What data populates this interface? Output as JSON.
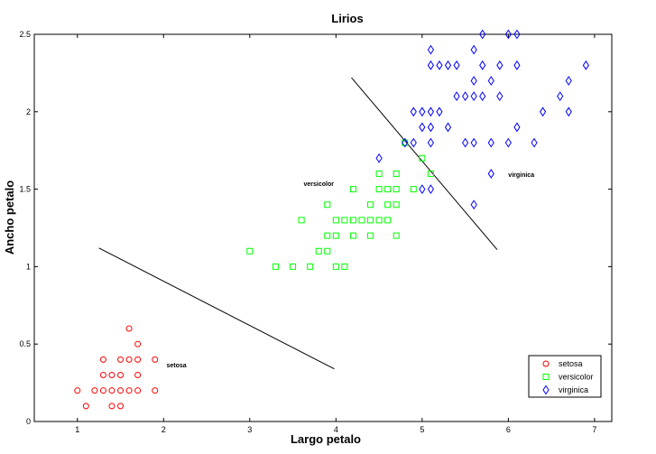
{
  "chart_data": {
    "type": "scatter",
    "title": "Lirios",
    "xlabel": "Largo petalo",
    "ylabel": "Ancho petalo",
    "xlim": [
      0.5,
      7.2
    ],
    "ylim": [
      0,
      2.5
    ],
    "x_ticks": [
      1,
      2,
      3,
      4,
      5,
      6,
      7
    ],
    "y_ticks": [
      0,
      0.5,
      1,
      1.5,
      2,
      2.5
    ],
    "y_tick_labels": [
      "0",
      "0.5",
      "1",
      "1.5",
      "2",
      "2.5"
    ],
    "grid": false,
    "legend_position": "bottom-right",
    "series": [
      {
        "name": "setosa",
        "marker": "circle",
        "color": "#ff0000",
        "points": [
          [
            1.0,
            0.2
          ],
          [
            1.1,
            0.1
          ],
          [
            1.2,
            0.2
          ],
          [
            1.3,
            0.2
          ],
          [
            1.3,
            0.3
          ],
          [
            1.3,
            0.4
          ],
          [
            1.4,
            0.1
          ],
          [
            1.4,
            0.2
          ],
          [
            1.4,
            0.3
          ],
          [
            1.5,
            0.1
          ],
          [
            1.5,
            0.2
          ],
          [
            1.5,
            0.3
          ],
          [
            1.5,
            0.4
          ],
          [
            1.6,
            0.2
          ],
          [
            1.6,
            0.4
          ],
          [
            1.6,
            0.6
          ],
          [
            1.7,
            0.2
          ],
          [
            1.7,
            0.3
          ],
          [
            1.7,
            0.4
          ],
          [
            1.7,
            0.5
          ],
          [
            1.9,
            0.2
          ],
          [
            1.9,
            0.4
          ]
        ]
      },
      {
        "name": "versicolor",
        "marker": "square",
        "color": "#00ff00",
        "points": [
          [
            3.0,
            1.1
          ],
          [
            3.3,
            1.0
          ],
          [
            3.5,
            1.0
          ],
          [
            3.6,
            1.3
          ],
          [
            3.7,
            1.0
          ],
          [
            3.8,
            1.1
          ],
          [
            3.9,
            1.1
          ],
          [
            3.9,
            1.2
          ],
          [
            3.9,
            1.4
          ],
          [
            4.0,
            1.0
          ],
          [
            4.0,
            1.2
          ],
          [
            4.0,
            1.3
          ],
          [
            4.1,
            1.0
          ],
          [
            4.1,
            1.3
          ],
          [
            4.2,
            1.2
          ],
          [
            4.2,
            1.3
          ],
          [
            4.2,
            1.5
          ],
          [
            4.3,
            1.3
          ],
          [
            4.4,
            1.2
          ],
          [
            4.4,
            1.3
          ],
          [
            4.4,
            1.4
          ],
          [
            4.5,
            1.3
          ],
          [
            4.5,
            1.5
          ],
          [
            4.5,
            1.6
          ],
          [
            4.6,
            1.3
          ],
          [
            4.6,
            1.4
          ],
          [
            4.6,
            1.5
          ],
          [
            4.7,
            1.2
          ],
          [
            4.7,
            1.4
          ],
          [
            4.7,
            1.5
          ],
          [
            4.7,
            1.6
          ],
          [
            4.8,
            1.8
          ],
          [
            4.9,
            1.5
          ],
          [
            5.0,
            1.7
          ],
          [
            5.1,
            1.6
          ]
        ]
      },
      {
        "name": "virginica",
        "marker": "diamond",
        "color": "#0000ff",
        "points": [
          [
            4.5,
            1.7
          ],
          [
            4.8,
            1.8
          ],
          [
            4.9,
            1.8
          ],
          [
            4.9,
            2.0
          ],
          [
            5.0,
            1.5
          ],
          [
            5.0,
            1.9
          ],
          [
            5.0,
            2.0
          ],
          [
            5.1,
            1.5
          ],
          [
            5.1,
            1.8
          ],
          [
            5.1,
            1.9
          ],
          [
            5.1,
            2.0
          ],
          [
            5.1,
            2.3
          ],
          [
            5.1,
            2.4
          ],
          [
            5.2,
            2.0
          ],
          [
            5.2,
            2.3
          ],
          [
            5.3,
            1.9
          ],
          [
            5.3,
            2.3
          ],
          [
            5.4,
            2.1
          ],
          [
            5.4,
            2.3
          ],
          [
            5.5,
            1.8
          ],
          [
            5.5,
            2.1
          ],
          [
            5.6,
            1.4
          ],
          [
            5.6,
            1.8
          ],
          [
            5.6,
            2.1
          ],
          [
            5.6,
            2.2
          ],
          [
            5.6,
            2.4
          ],
          [
            5.7,
            2.1
          ],
          [
            5.7,
            2.3
          ],
          [
            5.7,
            2.5
          ],
          [
            5.8,
            1.6
          ],
          [
            5.8,
            1.8
          ],
          [
            5.8,
            2.2
          ],
          [
            5.9,
            2.1
          ],
          [
            5.9,
            2.3
          ],
          [
            6.0,
            1.8
          ],
          [
            6.0,
            2.5
          ],
          [
            6.1,
            1.9
          ],
          [
            6.1,
            2.3
          ],
          [
            6.1,
            2.5
          ],
          [
            6.3,
            1.8
          ],
          [
            6.4,
            2.0
          ],
          [
            6.6,
            2.1
          ],
          [
            6.7,
            2.0
          ],
          [
            6.7,
            2.2
          ],
          [
            6.9,
            2.3
          ]
        ]
      }
    ],
    "boundary_lines": [
      {
        "from": [
          1.25,
          1.12
        ],
        "to": [
          3.98,
          0.34
        ]
      },
      {
        "from": [
          4.18,
          2.22
        ],
        "to": [
          5.87,
          1.11
        ]
      }
    ],
    "annotations": [
      {
        "text": "setosa",
        "x": 2.15,
        "y": 0.35
      },
      {
        "text": "versicolor",
        "x": 3.8,
        "y": 1.52
      },
      {
        "text": "virginica",
        "x": 6.15,
        "y": 1.58
      }
    ]
  }
}
